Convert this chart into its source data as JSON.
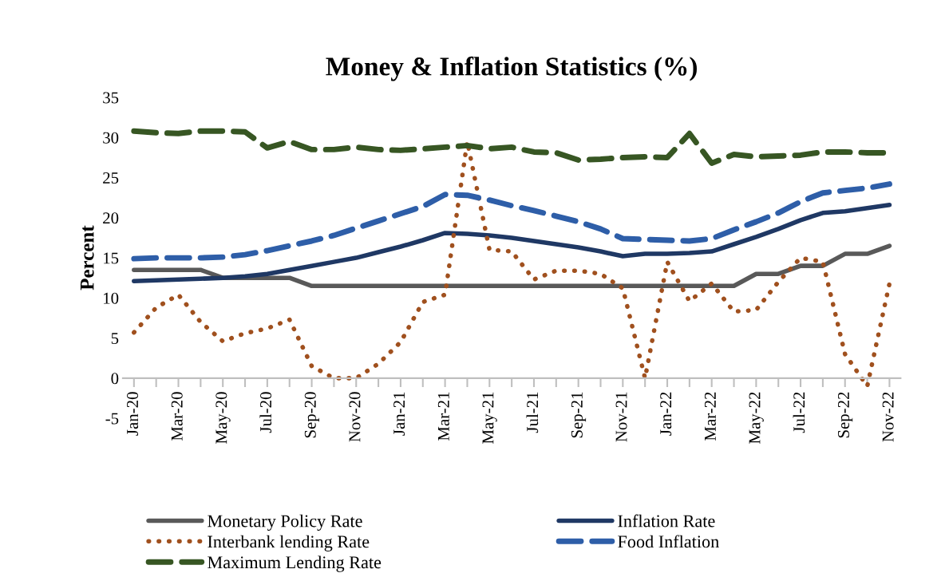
{
  "chart_data": {
    "type": "line",
    "title": "Money & Inflation Statistics (%)",
    "ylabel": "Percent",
    "categories": [
      "Jan-20",
      null,
      "Mar-20",
      null,
      "May-20",
      null,
      "Jul-20",
      null,
      "Sep-20",
      null,
      "Nov-20",
      null,
      "Jan-21",
      null,
      "Mar-21",
      null,
      "May-21",
      null,
      "Jul-21",
      null,
      "Sep-21",
      null,
      "Nov-21",
      null,
      "Jan-22",
      null,
      "Mar-22",
      null,
      "May-22",
      null,
      "Jul-22",
      null,
      "Sep-22",
      null,
      "Nov-22"
    ],
    "ylim": [
      -5,
      35
    ],
    "yticks": [
      -5,
      0,
      5,
      10,
      15,
      20,
      25,
      30,
      35
    ],
    "grid": false,
    "legend": "bottom",
    "series": [
      {
        "name": "Monetary Policy Rate",
        "color": "#595959",
        "line_style": "solid",
        "values": [
          13.5,
          13.5,
          13.5,
          13.5,
          12.5,
          12.5,
          12.5,
          12.5,
          11.5,
          11.5,
          11.5,
          11.5,
          11.5,
          11.5,
          11.5,
          11.5,
          11.5,
          11.5,
          11.5,
          11.5,
          11.5,
          11.5,
          11.5,
          11.5,
          11.5,
          11.5,
          11.5,
          11.5,
          13,
          13,
          14,
          14,
          15.5,
          15.5,
          16.5
        ]
      },
      {
        "name": "Inflation Rate",
        "color": "#1f3864",
        "line_style": "solid",
        "values": [
          12.1,
          12.2,
          12.3,
          12.4,
          12.5,
          12.7,
          13.0,
          13.5,
          14,
          14.5,
          15,
          15.7,
          16.4,
          17.2,
          18.1,
          18,
          17.8,
          17.5,
          17.1,
          16.7,
          16.3,
          15.8,
          15.2,
          15.5,
          15.5,
          15.6,
          15.8,
          16.7,
          17.6,
          18.6,
          19.7,
          20.6,
          20.8,
          21.2,
          21.6
        ]
      },
      {
        "name": "Interbank lending Rate",
        "color": "#a0501e",
        "line_style": "dotted",
        "values": [
          5.7,
          8.8,
          10.4,
          7,
          4.6,
          5.6,
          6.2,
          7.3,
          1.5,
          0,
          0,
          1.8,
          4.5,
          9.5,
          10.4,
          29.5,
          16,
          15.8,
          12.3,
          13.4,
          13.4,
          13,
          11.2,
          0,
          14.5,
          9.6,
          11.8,
          8.3,
          8.5,
          12,
          15,
          14.5,
          3,
          -1,
          11.8
        ]
      },
      {
        "name": "Food Inflation",
        "color": "#2e5ea8",
        "line_style": "dashed",
        "values": [
          14.9,
          15,
          15,
          15,
          15.1,
          15.4,
          15.9,
          16.5,
          17.1,
          17.8,
          18.7,
          19.6,
          20.5,
          21.4,
          22.9,
          22.8,
          22.2,
          21.5,
          20.9,
          20.2,
          19.5,
          18.6,
          17.4,
          17.3,
          17.2,
          17.1,
          17.4,
          18.5,
          19.5,
          20.6,
          22,
          23.1,
          23.4,
          23.7,
          24.2
        ]
      },
      {
        "name": "Maximum Lending Rate",
        "color": "#375623",
        "line_style": "dashed",
        "values": [
          30.8,
          30.6,
          30.5,
          30.8,
          30.8,
          30.7,
          28.7,
          29.5,
          28.5,
          28.5,
          28.8,
          28.5,
          28.4,
          28.6,
          28.8,
          29.0,
          28.6,
          28.8,
          28.2,
          28.1,
          27.2,
          27.3,
          27.5,
          27.6,
          27.5,
          30.5,
          26.8,
          27.9,
          27.6,
          27.7,
          27.8,
          28.2,
          28.2,
          28.1,
          28.1
        ]
      }
    ]
  }
}
